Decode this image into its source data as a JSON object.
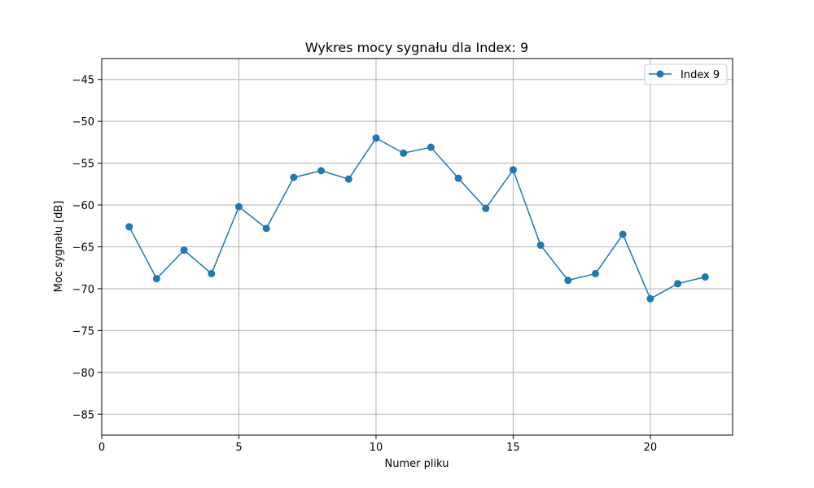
{
  "chart_data": {
    "type": "line",
    "title": "Wykres mocy sygnału dla Index: 9",
    "xlabel": "Numer pliku",
    "ylabel": "Moc sygnału [dB]",
    "xlim": [
      0,
      23
    ],
    "ylim": [
      -87.5,
      -42.5
    ],
    "xticks": [
      0,
      5,
      10,
      15,
      20
    ],
    "yticks": [
      -85,
      -80,
      -75,
      -70,
      -65,
      -60,
      -55,
      -50,
      -45
    ],
    "x_tick_labels": [
      "0",
      "5",
      "10",
      "15",
      "20"
    ],
    "y_tick_labels": [
      "−85",
      "−80",
      "−75",
      "−70",
      "−65",
      "−60",
      "−55",
      "−50",
      "−45"
    ],
    "grid": true,
    "legend_position": "top-right",
    "color": "#1f77b4",
    "series": [
      {
        "name": "Index 9",
        "x": [
          1,
          2,
          3,
          4,
          5,
          6,
          7,
          8,
          9,
          10,
          11,
          12,
          13,
          14,
          15,
          16,
          17,
          18,
          19,
          20,
          21,
          22
        ],
        "y": [
          -62.6,
          -68.8,
          -65.4,
          -68.2,
          -60.2,
          -62.8,
          -56.7,
          -55.9,
          -56.9,
          -52.0,
          -53.8,
          -53.1,
          -56.8,
          -60.4,
          -55.8,
          -64.8,
          -69.0,
          -68.2,
          -63.5,
          -71.2,
          -69.4,
          -68.6
        ]
      }
    ]
  }
}
